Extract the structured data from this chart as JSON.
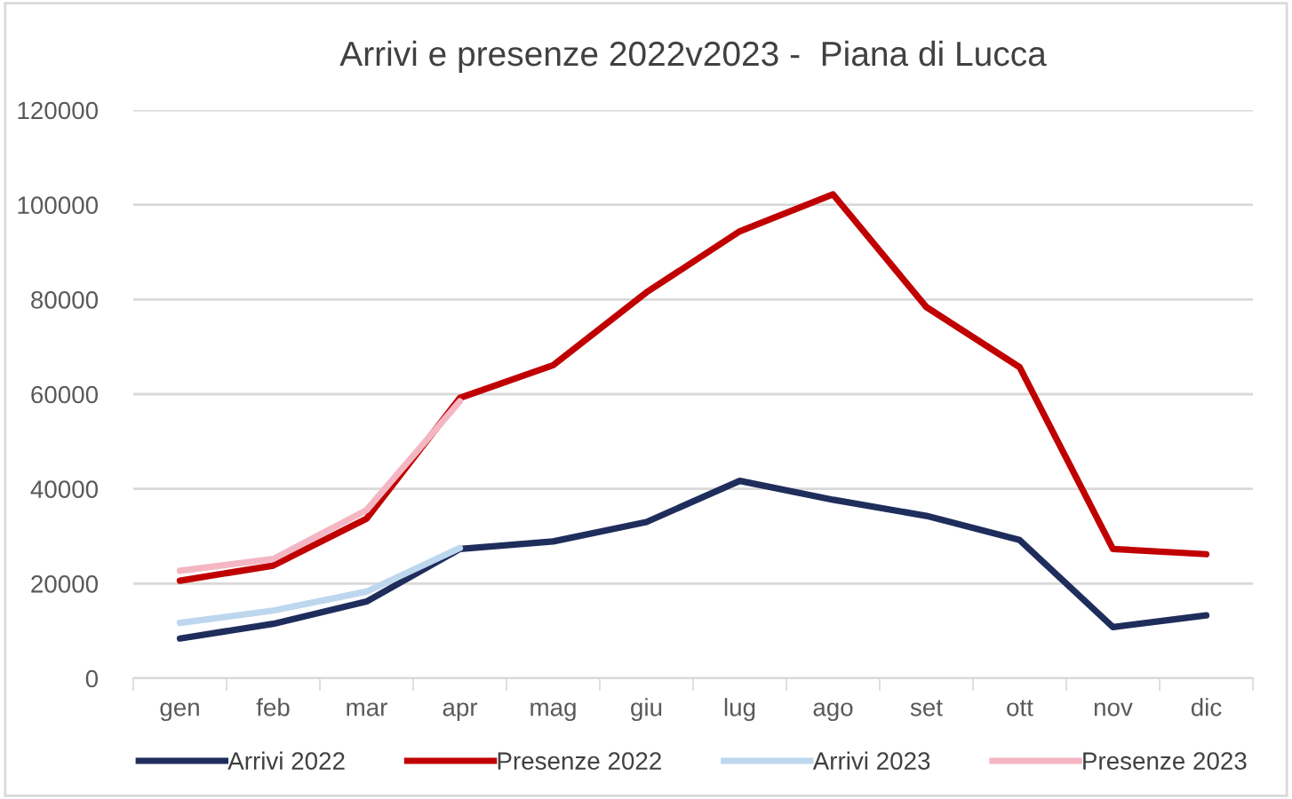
{
  "chart_data": {
    "type": "line",
    "title": "Arrivi e presenze 2022v2023 -  Piana di Lucca",
    "categories": [
      "gen",
      "feb",
      "mar",
      "apr",
      "mag",
      "giu",
      "lug",
      "ago",
      "set",
      "ott",
      "nov",
      "dic"
    ],
    "series": [
      {
        "name": "Arrivi 2022",
        "color": "#1f2d5c",
        "values": [
          8400,
          11500,
          16200,
          27300,
          28900,
          33000,
          41700,
          37700,
          34300,
          29200,
          10800,
          13300
        ]
      },
      {
        "name": "Presenze 2022",
        "color": "#c00000",
        "values": [
          20600,
          23800,
          33700,
          59200,
          66100,
          81500,
          94400,
          102200,
          78400,
          65700,
          27300,
          26200
        ]
      },
      {
        "name": "Arrivi 2023",
        "color": "#bdd7ee",
        "values": [
          11700,
          14300,
          18300,
          27500,
          null,
          null,
          null,
          null,
          null,
          null,
          null,
          null
        ]
      },
      {
        "name": "Presenze 2023",
        "color": "#f4b6c2",
        "values": [
          22700,
          25200,
          35500,
          58500,
          null,
          null,
          null,
          null,
          null,
          null,
          null,
          null
        ]
      }
    ],
    "ylim": [
      0,
      120000
    ],
    "yticks": [
      0,
      20000,
      40000,
      60000,
      80000,
      100000,
      120000
    ],
    "grid": "y",
    "legend": "bottom",
    "marker": "none",
    "line_style": "solid"
  }
}
